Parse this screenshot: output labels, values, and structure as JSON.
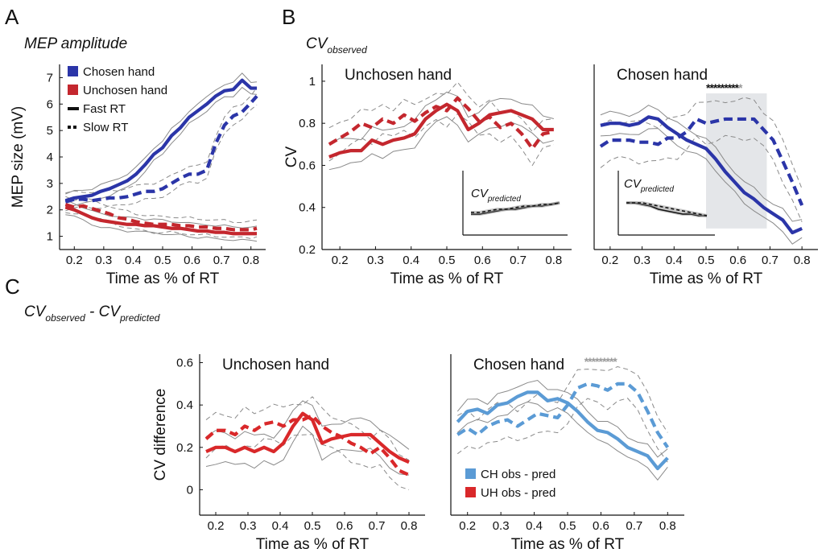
{
  "figure": {
    "letters": [
      "A",
      "B",
      "C"
    ],
    "heading_a": "MEP amplitude",
    "heading_b": {
      "base": "CV",
      "sub": "observed"
    },
    "heading_c": {
      "base1": "CV",
      "sub1": "observed",
      "mid": " - ",
      "base2": "CV",
      "sub2": "predicted"
    }
  },
  "colors": {
    "blue": "#2b35a8",
    "red": "#c4272e",
    "light_blue": "#5b9bd5",
    "bright_red": "#d9282a",
    "envelope": "#8a8a8a",
    "shade": "#e4e6e9"
  },
  "chart_data": [
    {
      "id": "A",
      "type": "line",
      "title": "",
      "xlabel": "Time as % of RT",
      "ylabel": "MEP size (mV)",
      "xlim": [
        0.15,
        0.85
      ],
      "ylim": [
        0.5,
        7.5
      ],
      "xticks": [
        0.2,
        0.3,
        0.4,
        0.5,
        0.6,
        0.7,
        0.8
      ],
      "yticks": [
        1,
        2,
        3,
        4,
        5,
        6,
        7
      ],
      "legend": {
        "position": "top-left",
        "entries": [
          {
            "label": "Chosen hand",
            "kind": "patch",
            "color": "#2b35a8"
          },
          {
            "label": "Unchosen hand",
            "kind": "patch",
            "color": "#c4272e"
          },
          {
            "label": "Fast RT",
            "kind": "solid"
          },
          {
            "label": "Slow RT",
            "kind": "dashed"
          }
        ]
      },
      "x": [
        0.17,
        0.2,
        0.23,
        0.26,
        0.29,
        0.32,
        0.35,
        0.38,
        0.41,
        0.44,
        0.47,
        0.5,
        0.53,
        0.56,
        0.59,
        0.62,
        0.65,
        0.68,
        0.71,
        0.74,
        0.77,
        0.8,
        0.82
      ],
      "series": [
        {
          "color": "#2b35a8",
          "style": "solid",
          "envelope": 0.25,
          "values": [
            2.35,
            2.45,
            2.5,
            2.55,
            2.7,
            2.8,
            2.95,
            3.1,
            3.35,
            3.7,
            4.1,
            4.35,
            4.8,
            5.1,
            5.5,
            5.75,
            6.0,
            6.3,
            6.5,
            6.55,
            6.9,
            6.6,
            6.6
          ]
        },
        {
          "color": "#2b35a8",
          "style": "dashed",
          "envelope": 0.3,
          "values": [
            2.3,
            2.4,
            2.4,
            2.35,
            2.4,
            2.45,
            2.45,
            2.5,
            2.6,
            2.7,
            2.7,
            2.8,
            3.0,
            3.2,
            3.35,
            3.35,
            3.5,
            4.5,
            5.2,
            5.55,
            5.7,
            6.05,
            6.3
          ]
        },
        {
          "color": "#c4272e",
          "style": "solid",
          "envelope": 0.25,
          "values": [
            2.1,
            2.0,
            1.85,
            1.7,
            1.6,
            1.55,
            1.5,
            1.45,
            1.45,
            1.4,
            1.4,
            1.35,
            1.3,
            1.3,
            1.25,
            1.2,
            1.2,
            1.15,
            1.15,
            1.1,
            1.1,
            1.1,
            1.1
          ]
        },
        {
          "color": "#c4272e",
          "style": "dashed",
          "envelope": 0.3,
          "values": [
            2.2,
            2.1,
            2.15,
            2.05,
            1.95,
            1.85,
            1.7,
            1.65,
            1.55,
            1.5,
            1.45,
            1.45,
            1.45,
            1.4,
            1.4,
            1.35,
            1.35,
            1.3,
            1.3,
            1.25,
            1.25,
            1.25,
            1.3
          ]
        }
      ]
    },
    {
      "id": "B-unchosen",
      "type": "line",
      "title": "Unchosen hand",
      "xlabel": "Time as % of RT",
      "ylabel": "CV",
      "xlim": [
        0.15,
        0.85
      ],
      "ylim": [
        0.2,
        1.08
      ],
      "xticks": [
        0.2,
        0.3,
        0.4,
        0.5,
        0.6,
        0.7,
        0.8
      ],
      "yticks": [
        0.2,
        0.4,
        0.6,
        0.8,
        1
      ],
      "x": [
        0.17,
        0.2,
        0.23,
        0.26,
        0.29,
        0.32,
        0.35,
        0.38,
        0.41,
        0.44,
        0.47,
        0.5,
        0.53,
        0.56,
        0.59,
        0.62,
        0.65,
        0.68,
        0.71,
        0.74,
        0.77,
        0.8
      ],
      "series": [
        {
          "color": "#c4272e",
          "style": "solid",
          "envelope": 0.06,
          "values": [
            0.64,
            0.66,
            0.67,
            0.67,
            0.72,
            0.7,
            0.72,
            0.73,
            0.75,
            0.82,
            0.86,
            0.89,
            0.86,
            0.77,
            0.8,
            0.84,
            0.85,
            0.86,
            0.84,
            0.82,
            0.77,
            0.77
          ]
        },
        {
          "color": "#c4272e",
          "style": "dashed",
          "envelope": 0.07,
          "values": [
            0.7,
            0.73,
            0.76,
            0.8,
            0.78,
            0.82,
            0.8,
            0.84,
            0.81,
            0.85,
            0.88,
            0.86,
            0.92,
            0.87,
            0.81,
            0.83,
            0.78,
            0.8,
            0.75,
            0.68,
            0.75,
            0.76
          ]
        }
      ],
      "inset": {
        "title": {
          "base": "CV",
          "sub": "predicted"
        },
        "x": [
          0.0,
          0.1,
          0.2,
          0.3,
          0.4,
          0.5,
          0.6,
          0.7,
          0.8,
          0.9,
          1.0
        ],
        "series": [
          {
            "color": "#111111",
            "style": "solid",
            "values": [
              0.3,
              0.3,
              0.31,
              0.32,
              0.33,
              0.33,
              0.34,
              0.35,
              0.35,
              0.36,
              0.37
            ]
          },
          {
            "color": "#111111",
            "style": "dashed",
            "values": [
              0.31,
              0.31,
              0.32,
              0.33,
              0.33,
              0.34,
              0.35,
              0.35,
              0.36,
              0.36,
              0.37
            ]
          }
        ]
      }
    },
    {
      "id": "B-chosen",
      "type": "line",
      "title": "Chosen hand",
      "xlabel": "Time as % of RT",
      "ylabel": "",
      "xlim": [
        0.15,
        0.85
      ],
      "ylim": [
        0.2,
        1.08
      ],
      "xticks": [
        0.2,
        0.3,
        0.4,
        0.5,
        0.6,
        0.7,
        0.8
      ],
      "yticks": [],
      "significance": {
        "text": "**********",
        "color": "#111111",
        "last_star_color": "#9a9a9a",
        "x_range": [
          0.5,
          0.69
        ],
        "shaded": true
      },
      "x": [
        0.17,
        0.2,
        0.23,
        0.26,
        0.29,
        0.32,
        0.35,
        0.38,
        0.41,
        0.44,
        0.47,
        0.5,
        0.53,
        0.56,
        0.59,
        0.62,
        0.65,
        0.68,
        0.71,
        0.74,
        0.77,
        0.8
      ],
      "series": [
        {
          "color": "#2b35a8",
          "style": "solid",
          "envelope": 0.05,
          "values": [
            0.79,
            0.8,
            0.8,
            0.79,
            0.8,
            0.83,
            0.82,
            0.78,
            0.75,
            0.72,
            0.7,
            0.68,
            0.63,
            0.57,
            0.52,
            0.47,
            0.44,
            0.4,
            0.37,
            0.34,
            0.28,
            0.3
          ]
        },
        {
          "color": "#2b35a8",
          "style": "dashed",
          "envelope": 0.09,
          "values": [
            0.69,
            0.72,
            0.72,
            0.72,
            0.71,
            0.71,
            0.7,
            0.73,
            0.73,
            0.76,
            0.82,
            0.8,
            0.81,
            0.82,
            0.82,
            0.82,
            0.82,
            0.77,
            0.72,
            0.62,
            0.52,
            0.41
          ]
        }
      ],
      "inset": {
        "title": {
          "base": "CV",
          "sub": "predicted"
        },
        "x": [
          0.0,
          0.1,
          0.2,
          0.3,
          0.4,
          0.5,
          0.6,
          0.7,
          0.8,
          0.9,
          1.0
        ],
        "series": [
          {
            "color": "#111111",
            "style": "solid",
            "values": [
              0.37,
              0.37,
              0.36,
              0.35,
              0.33,
              0.32,
              0.31,
              0.3,
              0.3,
              0.29,
              0.29
            ]
          },
          {
            "color": "#111111",
            "style": "dashed",
            "values": [
              0.37,
              0.37,
              0.37,
              0.36,
              0.35,
              0.34,
              0.33,
              0.32,
              0.31,
              0.3,
              0.29
            ]
          }
        ]
      }
    },
    {
      "id": "C-unchosen",
      "type": "line",
      "title": "Unchosen hand",
      "xlabel": "Time as % of RT",
      "ylabel": "CV difference",
      "xlim": [
        0.15,
        0.85
      ],
      "ylim": [
        -0.12,
        0.64
      ],
      "xticks": [
        0.2,
        0.3,
        0.4,
        0.5,
        0.6,
        0.7,
        0.8
      ],
      "yticks": [
        0,
        0.2,
        0.4,
        0.6
      ],
      "x": [
        0.17,
        0.2,
        0.23,
        0.26,
        0.29,
        0.32,
        0.35,
        0.38,
        0.41,
        0.44,
        0.47,
        0.5,
        0.53,
        0.56,
        0.59,
        0.62,
        0.65,
        0.68,
        0.71,
        0.74,
        0.77,
        0.8
      ],
      "series": [
        {
          "color": "#d9282a",
          "style": "solid",
          "envelope": 0.07,
          "values": [
            0.18,
            0.2,
            0.2,
            0.18,
            0.2,
            0.18,
            0.2,
            0.18,
            0.22,
            0.3,
            0.36,
            0.33,
            0.22,
            0.24,
            0.25,
            0.26,
            0.26,
            0.26,
            0.22,
            0.18,
            0.15,
            0.13
          ]
        },
        {
          "color": "#d9282a",
          "style": "dashed",
          "envelope": 0.08,
          "values": [
            0.24,
            0.28,
            0.28,
            0.26,
            0.3,
            0.28,
            0.31,
            0.32,
            0.3,
            0.33,
            0.33,
            0.35,
            0.3,
            0.27,
            0.25,
            0.22,
            0.2,
            0.17,
            0.2,
            0.15,
            0.09,
            0.07
          ]
        }
      ]
    },
    {
      "id": "C-chosen",
      "type": "line",
      "title": "Chosen hand",
      "xlabel": "Time as % of RT",
      "ylabel": "",
      "xlim": [
        0.15,
        0.85
      ],
      "ylim": [
        -0.12,
        0.64
      ],
      "xticks": [
        0.2,
        0.3,
        0.4,
        0.5,
        0.6,
        0.7,
        0.8
      ],
      "yticks": [],
      "significance": {
        "text": "*********",
        "color": "#9a9a9a",
        "x_range": [
          0.55,
          0.72
        ],
        "shaded": false
      },
      "legend": {
        "position": "bottom-left",
        "entries": [
          {
            "label": "CH obs - pred",
            "kind": "patch",
            "color": "#5b9bd5"
          },
          {
            "label": "UH obs - pred",
            "kind": "patch",
            "color": "#d9282a"
          }
        ]
      },
      "x": [
        0.17,
        0.2,
        0.23,
        0.26,
        0.29,
        0.32,
        0.35,
        0.38,
        0.41,
        0.44,
        0.47,
        0.5,
        0.53,
        0.56,
        0.59,
        0.62,
        0.65,
        0.68,
        0.71,
        0.74,
        0.77,
        0.8
      ],
      "series": [
        {
          "color": "#5b9bd5",
          "style": "solid",
          "envelope": 0.05,
          "values": [
            0.32,
            0.37,
            0.38,
            0.36,
            0.4,
            0.41,
            0.44,
            0.46,
            0.46,
            0.42,
            0.43,
            0.41,
            0.37,
            0.32,
            0.28,
            0.27,
            0.24,
            0.2,
            0.18,
            0.16,
            0.1,
            0.15
          ]
        },
        {
          "color": "#5b9bd5",
          "style": "dashed",
          "envelope": 0.08,
          "values": [
            0.26,
            0.29,
            0.26,
            0.3,
            0.32,
            0.33,
            0.3,
            0.33,
            0.36,
            0.35,
            0.34,
            0.4,
            0.48,
            0.5,
            0.49,
            0.47,
            0.5,
            0.5,
            0.46,
            0.37,
            0.27,
            0.2
          ]
        }
      ]
    }
  ]
}
